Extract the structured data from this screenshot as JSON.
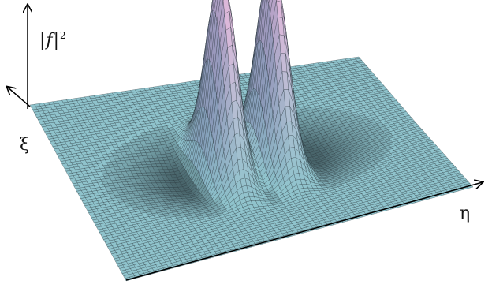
{
  "figure": {
    "z_axis_label": {
      "bar_left": "|",
      "symbol": "f",
      "bar_right": "|",
      "exponent": "2"
    },
    "xi_axis_label": "ξ",
    "eta_axis_label": "η"
  },
  "surface": {
    "grid_lines_per_side": 72,
    "peaks": [
      {
        "eta": -0.15,
        "xi": 0.0,
        "height": 1.0
      },
      {
        "eta": 0.15,
        "xi": 0.0,
        "height": 1.0
      }
    ]
  },
  "colors": {
    "surface_base": "#8fc3cc",
    "surface_peak": "#dcb8da",
    "mesh_line": "#1d2a30",
    "axis": "#000000"
  }
}
